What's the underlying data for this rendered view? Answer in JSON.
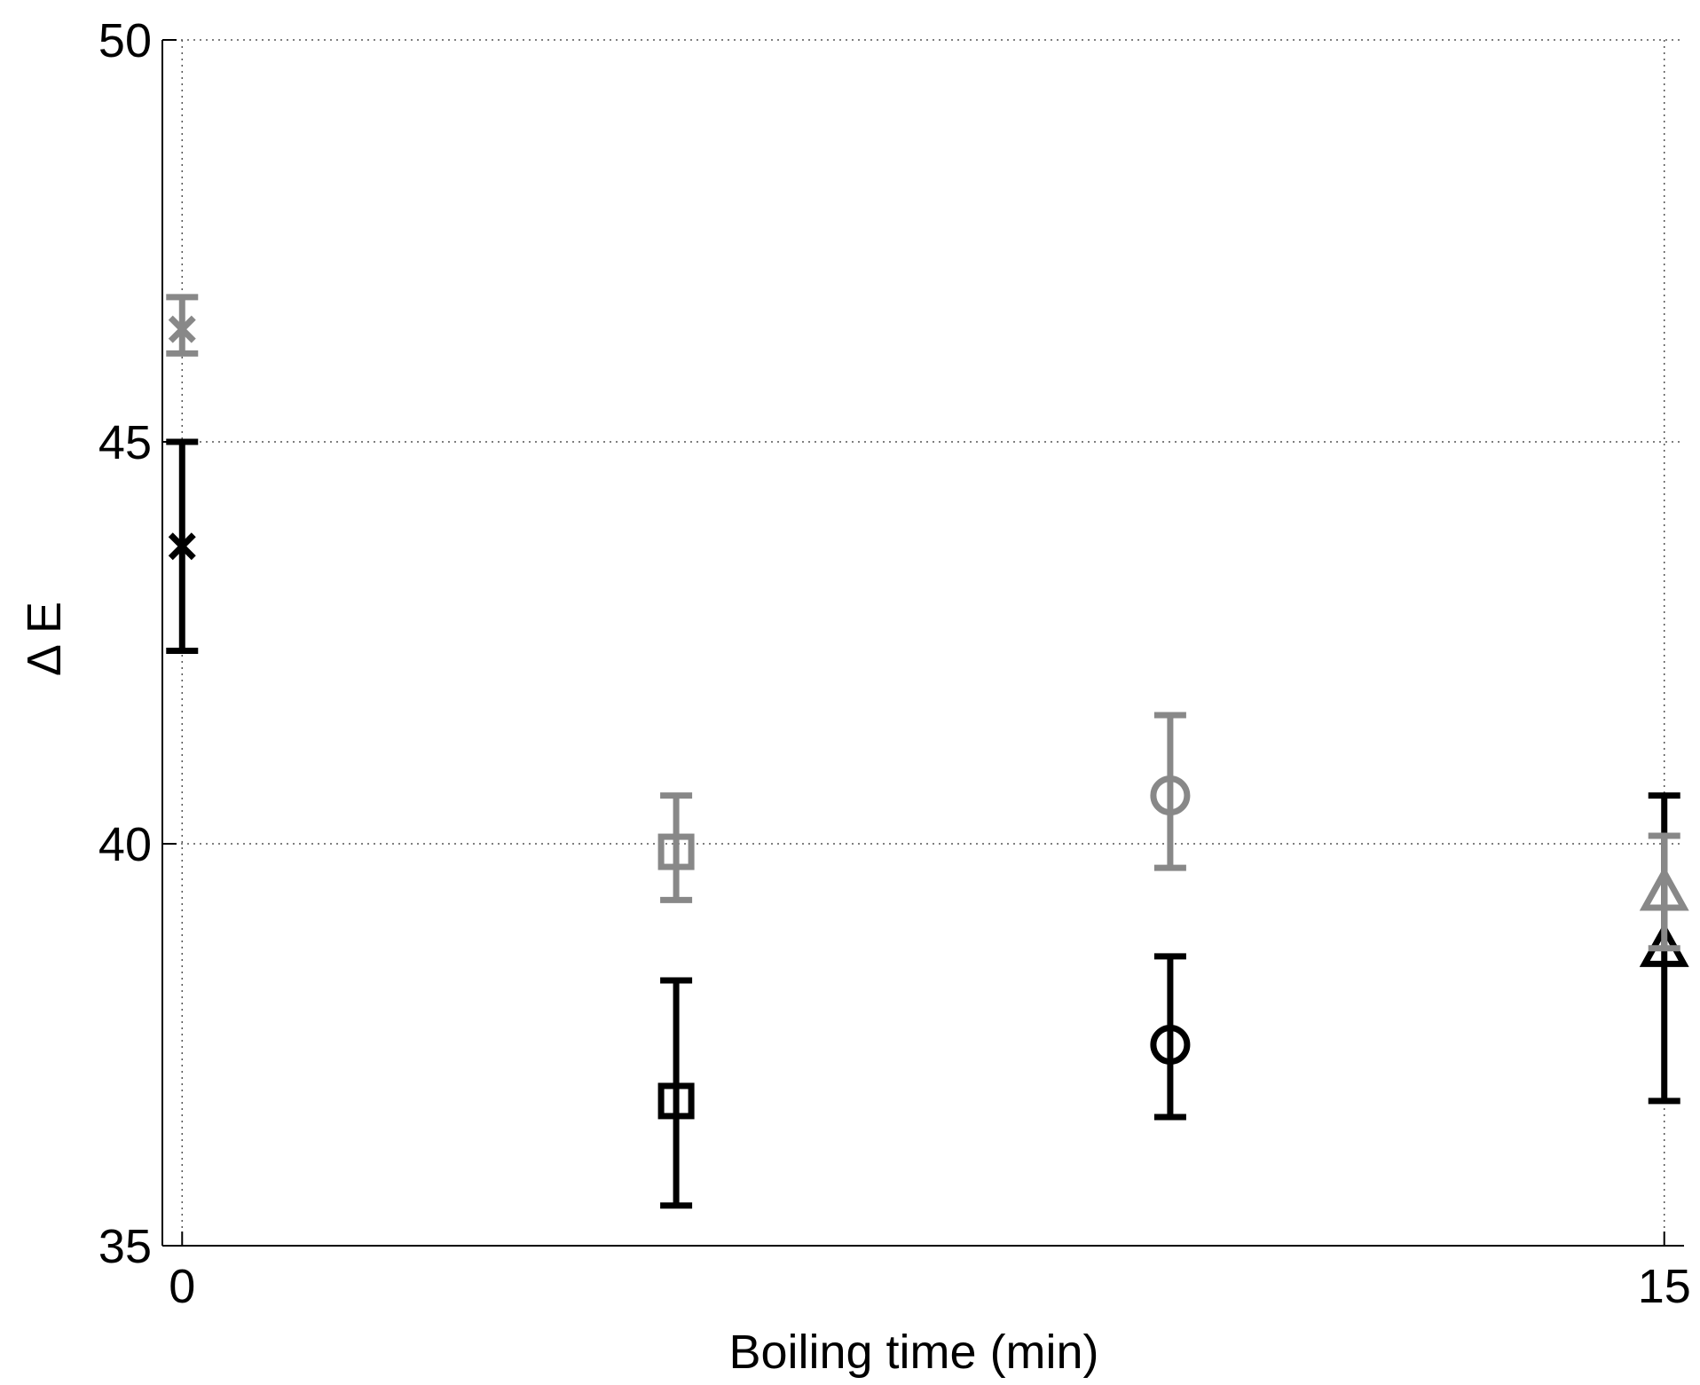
{
  "chart_data": {
    "type": "scatter",
    "title": "",
    "xlabel": "Boiling time (min)",
    "ylabel": "Δ E",
    "xlim": [
      -0.2,
      15.2
    ],
    "ylim": [
      35,
      50
    ],
    "x_ticks": [
      0,
      15
    ],
    "x_tick_labels": [
      "0",
      "15"
    ],
    "y_ticks": [
      35,
      40,
      45,
      50
    ],
    "y_tick_labels": [
      "35",
      "40",
      "45",
      "50"
    ],
    "grid": true,
    "legend": "none",
    "series": [
      {
        "color": "#000000",
        "points": [
          {
            "x": 0,
            "y": 43.7,
            "err_low": 42.4,
            "err_high": 45.0,
            "marker": "x"
          },
          {
            "x": 5,
            "y": 36.8,
            "err_low": 35.5,
            "err_high": 38.3,
            "marker": "square"
          },
          {
            "x": 10,
            "y": 37.5,
            "err_low": 36.6,
            "err_high": 38.6,
            "marker": "circle"
          },
          {
            "x": 15,
            "y": 38.7,
            "err_low": 36.8,
            "err_high": 40.6,
            "marker": "triangle"
          }
        ]
      },
      {
        "color": "#888888",
        "points": [
          {
            "x": 0,
            "y": 46.4,
            "err_low": 46.1,
            "err_high": 46.8,
            "marker": "x"
          },
          {
            "x": 5,
            "y": 39.9,
            "err_low": 39.3,
            "err_high": 40.6,
            "marker": "square"
          },
          {
            "x": 10,
            "y": 40.6,
            "err_low": 39.7,
            "err_high": 41.6,
            "marker": "circle"
          },
          {
            "x": 15,
            "y": 39.4,
            "err_low": 38.7,
            "err_high": 40.1,
            "marker": "triangle"
          }
        ]
      }
    ]
  }
}
